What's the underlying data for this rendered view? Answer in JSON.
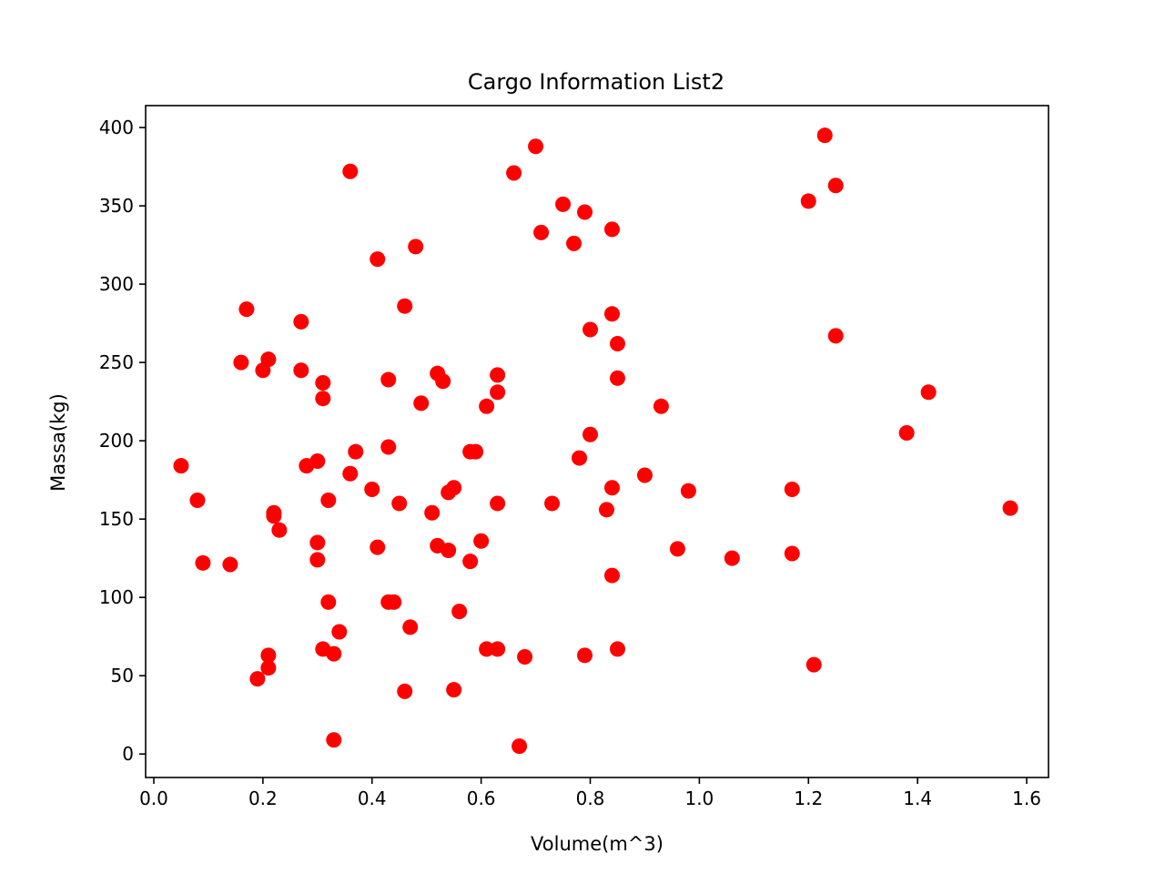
{
  "chart_data": {
    "type": "scatter",
    "title": "Cargo Information List2",
    "xlabel": "Volume(m^3)",
    "ylabel": "Massa(kg)",
    "xlim": [
      -0.015,
      1.64
    ],
    "ylim": [
      -15,
      414
    ],
    "xticks": [
      0.0,
      0.2,
      0.4,
      0.6,
      0.8,
      1.0,
      1.2,
      1.4,
      1.6
    ],
    "xtick_labels": [
      "0.0",
      "0.2",
      "0.4",
      "0.6",
      "0.8",
      "1.0",
      "1.2",
      "1.4",
      "1.6"
    ],
    "yticks": [
      0,
      50,
      100,
      150,
      200,
      250,
      300,
      350,
      400
    ],
    "ytick_labels": [
      "0",
      "50",
      "100",
      "150",
      "200",
      "250",
      "300",
      "350",
      "400"
    ],
    "grid": false,
    "marker_color": "#ff0000",
    "points": [
      {
        "x": 0.05,
        "y": 184
      },
      {
        "x": 0.08,
        "y": 162
      },
      {
        "x": 0.09,
        "y": 122
      },
      {
        "x": 0.14,
        "y": 121
      },
      {
        "x": 0.16,
        "y": 250
      },
      {
        "x": 0.17,
        "y": 284
      },
      {
        "x": 0.19,
        "y": 48
      },
      {
        "x": 0.2,
        "y": 245
      },
      {
        "x": 0.21,
        "y": 252
      },
      {
        "x": 0.21,
        "y": 55
      },
      {
        "x": 0.21,
        "y": 63
      },
      {
        "x": 0.22,
        "y": 152
      },
      {
        "x": 0.22,
        "y": 154
      },
      {
        "x": 0.23,
        "y": 143
      },
      {
        "x": 0.27,
        "y": 276
      },
      {
        "x": 0.27,
        "y": 245
      },
      {
        "x": 0.28,
        "y": 184
      },
      {
        "x": 0.3,
        "y": 187
      },
      {
        "x": 0.3,
        "y": 135
      },
      {
        "x": 0.3,
        "y": 124
      },
      {
        "x": 0.31,
        "y": 237
      },
      {
        "x": 0.31,
        "y": 227
      },
      {
        "x": 0.31,
        "y": 67
      },
      {
        "x": 0.32,
        "y": 162
      },
      {
        "x": 0.32,
        "y": 97
      },
      {
        "x": 0.33,
        "y": 9
      },
      {
        "x": 0.33,
        "y": 64
      },
      {
        "x": 0.34,
        "y": 78
      },
      {
        "x": 0.36,
        "y": 372
      },
      {
        "x": 0.36,
        "y": 179
      },
      {
        "x": 0.37,
        "y": 193
      },
      {
        "x": 0.4,
        "y": 169
      },
      {
        "x": 0.41,
        "y": 316
      },
      {
        "x": 0.41,
        "y": 132
      },
      {
        "x": 0.43,
        "y": 239
      },
      {
        "x": 0.43,
        "y": 196
      },
      {
        "x": 0.43,
        "y": 97
      },
      {
        "x": 0.44,
        "y": 97
      },
      {
        "x": 0.45,
        "y": 160
      },
      {
        "x": 0.46,
        "y": 286
      },
      {
        "x": 0.46,
        "y": 40
      },
      {
        "x": 0.47,
        "y": 81
      },
      {
        "x": 0.48,
        "y": 324
      },
      {
        "x": 0.49,
        "y": 224
      },
      {
        "x": 0.51,
        "y": 154
      },
      {
        "x": 0.52,
        "y": 243
      },
      {
        "x": 0.52,
        "y": 133
      },
      {
        "x": 0.53,
        "y": 238
      },
      {
        "x": 0.54,
        "y": 130
      },
      {
        "x": 0.54,
        "y": 167
      },
      {
        "x": 0.55,
        "y": 170
      },
      {
        "x": 0.55,
        "y": 41
      },
      {
        "x": 0.56,
        "y": 91
      },
      {
        "x": 0.58,
        "y": 193
      },
      {
        "x": 0.58,
        "y": 123
      },
      {
        "x": 0.59,
        "y": 193
      },
      {
        "x": 0.6,
        "y": 136
      },
      {
        "x": 0.61,
        "y": 222
      },
      {
        "x": 0.61,
        "y": 67
      },
      {
        "x": 0.63,
        "y": 242
      },
      {
        "x": 0.63,
        "y": 231
      },
      {
        "x": 0.63,
        "y": 160
      },
      {
        "x": 0.63,
        "y": 67
      },
      {
        "x": 0.66,
        "y": 371
      },
      {
        "x": 0.67,
        "y": 5
      },
      {
        "x": 0.68,
        "y": 62
      },
      {
        "x": 0.7,
        "y": 388
      },
      {
        "x": 0.71,
        "y": 333
      },
      {
        "x": 0.73,
        "y": 160
      },
      {
        "x": 0.75,
        "y": 351
      },
      {
        "x": 0.77,
        "y": 326
      },
      {
        "x": 0.78,
        "y": 189
      },
      {
        "x": 0.79,
        "y": 346
      },
      {
        "x": 0.79,
        "y": 63
      },
      {
        "x": 0.8,
        "y": 271
      },
      {
        "x": 0.8,
        "y": 204
      },
      {
        "x": 0.83,
        "y": 156
      },
      {
        "x": 0.84,
        "y": 335
      },
      {
        "x": 0.84,
        "y": 114
      },
      {
        "x": 0.84,
        "y": 281
      },
      {
        "x": 0.84,
        "y": 170
      },
      {
        "x": 0.85,
        "y": 262
      },
      {
        "x": 0.85,
        "y": 240
      },
      {
        "x": 0.85,
        "y": 67
      },
      {
        "x": 0.9,
        "y": 178
      },
      {
        "x": 0.93,
        "y": 222
      },
      {
        "x": 0.96,
        "y": 131
      },
      {
        "x": 0.98,
        "y": 168
      },
      {
        "x": 1.06,
        "y": 125
      },
      {
        "x": 1.17,
        "y": 169
      },
      {
        "x": 1.17,
        "y": 128
      },
      {
        "x": 1.2,
        "y": 353
      },
      {
        "x": 1.21,
        "y": 57
      },
      {
        "x": 1.23,
        "y": 395
      },
      {
        "x": 1.25,
        "y": 267
      },
      {
        "x": 1.25,
        "y": 363
      },
      {
        "x": 1.38,
        "y": 205
      },
      {
        "x": 1.42,
        "y": 231
      },
      {
        "x": 1.57,
        "y": 157
      }
    ]
  }
}
